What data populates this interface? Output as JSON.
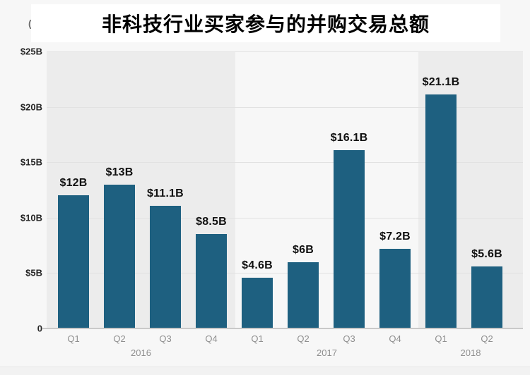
{
  "title": "非科技行业买家参与的并购交易总额",
  "clipped_fragment": "(",
  "colors": {
    "bar": "#1e6080",
    "band_shaded": "#ececec",
    "band_light": "#f7f7f7",
    "background": "#f7f7f7",
    "value_label": "#111111",
    "axis_label": "#262626",
    "quarter_label": "#8f8f8f"
  },
  "y_axis": {
    "tick_labels": [
      "$25B",
      "$20B",
      "$15B",
      "$10B",
      "$5B",
      "0"
    ],
    "tick_values": [
      25,
      20,
      15,
      10,
      5,
      0
    ]
  },
  "chart_data": {
    "type": "bar",
    "title": "非科技行业买家参与的并购交易总额",
    "x": [
      "2016 Q1",
      "2016 Q2",
      "2016 Q3",
      "2016 Q4",
      "2017 Q1",
      "2017 Q2",
      "2017 Q3",
      "2017 Q4",
      "2018 Q1",
      "2018 Q2"
    ],
    "quarter_labels": [
      "Q1",
      "Q2",
      "Q3",
      "Q4",
      "Q1",
      "Q2",
      "Q3",
      "Q4",
      "Q1",
      "Q2"
    ],
    "values": [
      12,
      13,
      11.1,
      8.5,
      4.6,
      6,
      16.1,
      7.2,
      21.1,
      5.6
    ],
    "value_labels": [
      "$12B",
      "$13B",
      "$11.1B",
      "$8.5B",
      "$4.6B",
      "$6B",
      "$16.1B",
      "$7.2B",
      "$21.1B",
      "$5.6B"
    ],
    "year_groups": [
      {
        "label": "2016",
        "bars": 4,
        "shaded": true
      },
      {
        "label": "2017",
        "bars": 4,
        "shaded": false
      },
      {
        "label": "2018",
        "bars": 2,
        "shaded": true
      }
    ],
    "ylabel": "",
    "xlabel": "",
    "ylim": [
      0,
      25
    ],
    "ytick_step": 5,
    "grid": true,
    "legend": false
  }
}
